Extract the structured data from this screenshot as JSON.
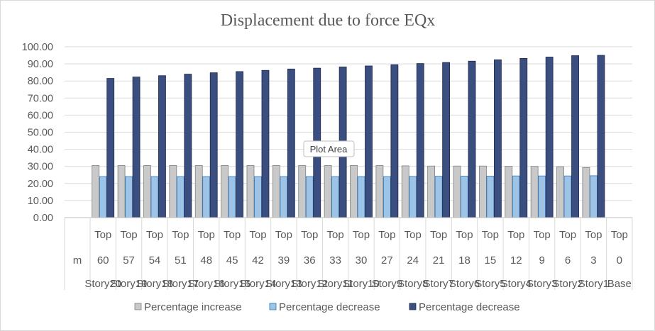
{
  "chart_data": {
    "type": "bar",
    "title": "Displacement due to force EQx",
    "ylim": [
      0,
      100
    ],
    "y_ticks": [
      "0.00",
      "10.00",
      "20.00",
      "30.00",
      "40.00",
      "50.00",
      "60.00",
      "70.00",
      "80.00",
      "90.00",
      "100.00"
    ],
    "header_column": [
      "m"
    ],
    "categories": [
      {
        "level": "Top",
        "elevation": "60",
        "story": "Story20"
      },
      {
        "level": "Top",
        "elevation": "57",
        "story": "Story19"
      },
      {
        "level": "Top",
        "elevation": "54",
        "story": "Story18"
      },
      {
        "level": "Top",
        "elevation": "51",
        "story": "Story17"
      },
      {
        "level": "Top",
        "elevation": "48",
        "story": "Story16"
      },
      {
        "level": "Top",
        "elevation": "45",
        "story": "Story15"
      },
      {
        "level": "Top",
        "elevation": "42",
        "story": "Story14"
      },
      {
        "level": "Top",
        "elevation": "39",
        "story": "Story13"
      },
      {
        "level": "Top",
        "elevation": "36",
        "story": "Story12"
      },
      {
        "level": "Top",
        "elevation": "33",
        "story": "Story11"
      },
      {
        "level": "Top",
        "elevation": "30",
        "story": "Story10"
      },
      {
        "level": "Top",
        "elevation": "27",
        "story": "Story9"
      },
      {
        "level": "Top",
        "elevation": "24",
        "story": "Story8"
      },
      {
        "level": "Top",
        "elevation": "21",
        "story": "Story7"
      },
      {
        "level": "Top",
        "elevation": "18",
        "story": "Story6"
      },
      {
        "level": "Top",
        "elevation": "15",
        "story": "Story5"
      },
      {
        "level": "Top",
        "elevation": "12",
        "story": "Story4"
      },
      {
        "level": "Top",
        "elevation": "9",
        "story": "Story3"
      },
      {
        "level": "Top",
        "elevation": "6",
        "story": "Story2"
      },
      {
        "level": "Top",
        "elevation": "3",
        "story": "Story1"
      },
      {
        "level": "Top",
        "elevation": "0",
        "story": "Base"
      }
    ],
    "series": [
      {
        "name": "Percentage increase",
        "color": "#c9c9c9",
        "stroke": "#7f7f7f",
        "values": [
          30.5,
          30.5,
          30.5,
          30.5,
          30.5,
          30.5,
          30.5,
          30.5,
          30.5,
          30.5,
          30.5,
          30.5,
          30.3,
          30.2,
          30.2,
          30.2,
          30.1,
          30.0,
          29.8,
          29.3,
          null
        ]
      },
      {
        "name": "Percentage decrease",
        "color": "#9dc3e6",
        "stroke": "#2e75b6",
        "values": [
          24.0,
          24.0,
          24.0,
          24.0,
          24.0,
          24.0,
          24.0,
          24.0,
          24.0,
          24.0,
          24.0,
          24.0,
          24.1,
          24.2,
          24.3,
          24.3,
          24.4,
          24.4,
          24.4,
          24.5,
          null
        ]
      },
      {
        "name": "Percentage decrease",
        "color": "#3b4e80",
        "stroke": "#1f2a4a",
        "values": [
          81.5,
          82.3,
          83.1,
          84.0,
          84.8,
          85.5,
          86.2,
          87.0,
          87.5,
          88.2,
          88.8,
          89.5,
          90.2,
          90.8,
          91.6,
          92.4,
          93.2,
          94.0,
          94.8,
          95.0,
          null
        ]
      }
    ],
    "legend_position": "bottom"
  },
  "tooltip": {
    "label": "Plot Area"
  }
}
